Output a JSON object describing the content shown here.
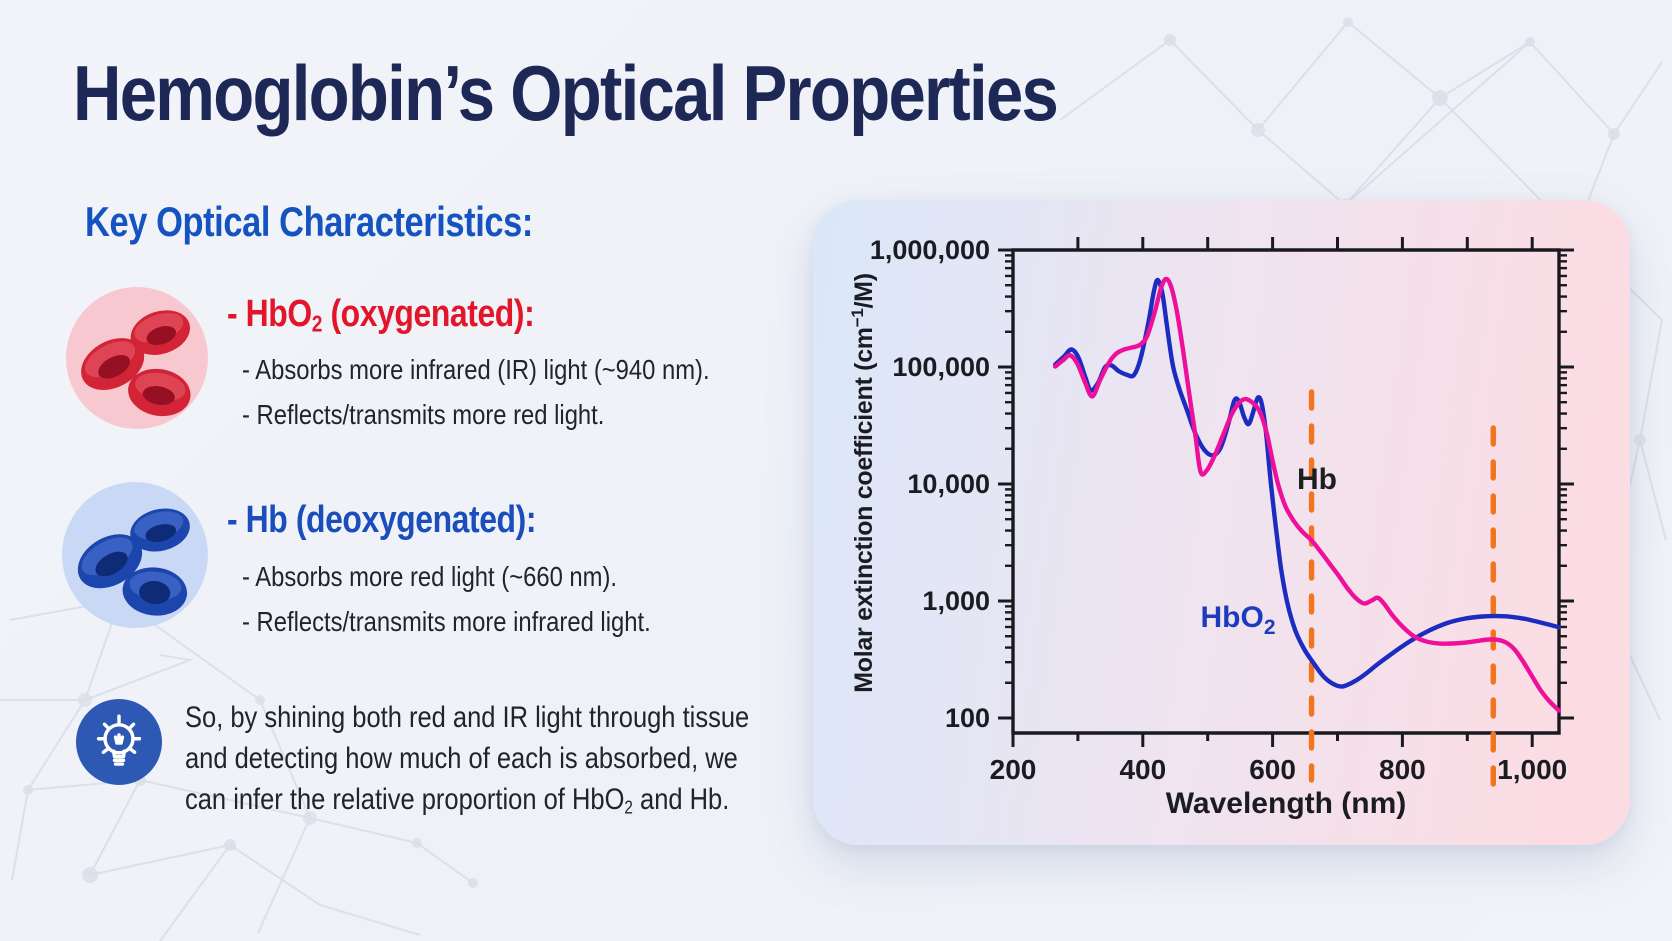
{
  "title": "Hemoglobin’s Optical Properties",
  "key_heading": "Key Optical Characteristics:",
  "sections": [
    {
      "id": "hbo2",
      "heading_pre": "- HbO",
      "heading_sub": "2",
      "heading_post": " (oxygenated):",
      "bullets": [
        "- Absorbs more infrared (IR) light (~940 nm).",
        "- Reflects/transmits more red light."
      ]
    },
    {
      "id": "hb",
      "heading_pre": "- Hb (deoxygenated):",
      "heading_sub": "",
      "heading_post": "",
      "bullets": [
        "- Absorbs more red light (~660 nm).",
        "- Reflects/transmits more infrared light."
      ]
    }
  ],
  "note": {
    "lines": [
      "So, by shining both red and IR light through tissue",
      "and detecting how much of each is absorbed, we"
    ],
    "line3_pre": "can infer the relative proportion of HbO",
    "line3_sub": "2",
    "line3_post": " and Hb."
  },
  "icons": {
    "oxygenated": "red-blood-cells-icon",
    "deoxygenated": "blue-blood-cells-icon",
    "note": "lightbulb-icon"
  },
  "colors": {
    "title": "#1d2857",
    "key_heading": "#1553c0",
    "hbo2_heading": "#e2152b",
    "hb_heading": "#1b4dbb",
    "body_text": "#232429",
    "panel_gradient": [
      "#dbe7f9",
      "#fcdce3"
    ],
    "curve_hbo2": "#1b2cc1",
    "curve_hb": "#ee109b",
    "dashed_line": "#f2751d",
    "axis": "#191a1f"
  },
  "chart_data": {
    "type": "line",
    "title": "",
    "xlabel": "Wavelength (nm)",
    "ylabel": "Molar extinction coefficient (cm⁻¹/M)",
    "ylabel_parts": {
      "pre": "Molar extinction coefficient (cm",
      "sup": "−1",
      "post": "/M)"
    },
    "x_scale": "linear",
    "y_scale": "log",
    "xlim": [
      200,
      1041
    ],
    "ylim": [
      100,
      1000000
    ],
    "grid": false,
    "legend_position": "inline-labels",
    "x_major_ticks": [
      {
        "value": 200,
        "label": "200"
      },
      {
        "value": 400,
        "label": "400"
      },
      {
        "value": 600,
        "label": "600"
      },
      {
        "value": 800,
        "label": "800"
      },
      {
        "value": 1000,
        "label": "1,000"
      }
    ],
    "x_minor_ticks": [
      300,
      500,
      700,
      900
    ],
    "x_top_ticks": [
      300,
      400,
      500,
      600,
      700,
      800,
      900,
      1000
    ],
    "y_major_ticks": [
      {
        "value": 1000000,
        "label": "1,000,000"
      },
      {
        "value": 100000,
        "label": "100,000"
      },
      {
        "value": 10000,
        "label": "10,000"
      },
      {
        "value": 1000,
        "label": "1,000"
      },
      {
        "value": 100,
        "label": "100"
      }
    ],
    "vlines": [
      {
        "wavelength_nm": 660,
        "color": "#f2751d",
        "style": "dashed"
      },
      {
        "wavelength_nm": 940,
        "color": "#f2751d",
        "style": "dashed"
      }
    ],
    "series": [
      {
        "name": "HbO2",
        "label": "HbO₂",
        "label_parts": {
          "pre": "HbO",
          "sub": "2"
        },
        "color": "#1b2cc1",
        "label_color": "#1d3cbd",
        "points": [
          [
            265,
            105000
          ],
          [
            278,
            122000
          ],
          [
            290,
            141000
          ],
          [
            301,
            120000
          ],
          [
            312,
            80000
          ],
          [
            320,
            63000
          ],
          [
            331,
            73000
          ],
          [
            342,
            100000
          ],
          [
            352,
            103000
          ],
          [
            363,
            92000
          ],
          [
            375,
            86000
          ],
          [
            386,
            85000
          ],
          [
            396,
            115000
          ],
          [
            408,
            230000
          ],
          [
            417,
            440000
          ],
          [
            423,
            555000
          ],
          [
            430,
            430000
          ],
          [
            437,
            230000
          ],
          [
            446,
            105000
          ],
          [
            456,
            66000
          ],
          [
            468,
            43000
          ],
          [
            481,
            27000
          ],
          [
            495,
            19500
          ],
          [
            508,
            17600
          ],
          [
            520,
            20500
          ],
          [
            532,
            33000
          ],
          [
            541,
            51500
          ],
          [
            548,
            51000
          ],
          [
            556,
            37500
          ],
          [
            563,
            32500
          ],
          [
            570,
            41000
          ],
          [
            577,
            54500
          ],
          [
            583,
            49000
          ],
          [
            590,
            27000
          ],
          [
            597,
            10500
          ],
          [
            605,
            4300
          ],
          [
            613,
            1900
          ],
          [
            623,
            950
          ],
          [
            635,
            560
          ],
          [
            649,
            385
          ],
          [
            663,
            295
          ],
          [
            678,
            228
          ],
          [
            693,
            196
          ],
          [
            707,
            186
          ],
          [
            723,
            201
          ],
          [
            741,
            233
          ],
          [
            763,
            292
          ],
          [
            789,
            372
          ],
          [
            813,
            458
          ],
          [
            841,
            558
          ],
          [
            869,
            648
          ],
          [
            897,
            708
          ],
          [
            923,
            737
          ],
          [
            946,
            743
          ],
          [
            969,
            731
          ],
          [
            991,
            700
          ],
          [
            1013,
            655
          ],
          [
            1041,
            597
          ]
        ]
      },
      {
        "name": "Hb",
        "label": "Hb",
        "label_parts": {
          "pre": "Hb",
          "sub": ""
        },
        "color": "#ee109b",
        "label_color": "#1d1e22",
        "points": [
          [
            265,
            101000
          ],
          [
            277,
            114000
          ],
          [
            288,
            126000
          ],
          [
            299,
            107000
          ],
          [
            311,
            74000
          ],
          [
            322,
            56000
          ],
          [
            334,
            77000
          ],
          [
            347,
            107000
          ],
          [
            359,
            130000
          ],
          [
            371,
            141000
          ],
          [
            384,
            147000
          ],
          [
            395,
            154000
          ],
          [
            406,
            180000
          ],
          [
            418,
            290000
          ],
          [
            428,
            472000
          ],
          [
            436,
            566000
          ],
          [
            444,
            478000
          ],
          [
            453,
            288000
          ],
          [
            462,
            140000
          ],
          [
            471,
            62000
          ],
          [
            481,
            26000
          ],
          [
            489,
            12700
          ],
          [
            499,
            13200
          ],
          [
            511,
            17600
          ],
          [
            524,
            26500
          ],
          [
            537,
            39500
          ],
          [
            549,
            49800
          ],
          [
            558,
            53200
          ],
          [
            567,
            50600
          ],
          [
            576,
            45400
          ],
          [
            584,
            36800
          ],
          [
            592,
            25800
          ],
          [
            600,
            15800
          ],
          [
            609,
            9700
          ],
          [
            620,
            6400
          ],
          [
            633,
            4800
          ],
          [
            646,
            3900
          ],
          [
            660,
            3300
          ],
          [
            674,
            2640
          ],
          [
            688,
            2080
          ],
          [
            702,
            1640
          ],
          [
            716,
            1270
          ],
          [
            729,
            1050
          ],
          [
            741,
            952
          ],
          [
            753,
            1012
          ],
          [
            762,
            1066
          ],
          [
            772,
            944
          ],
          [
            786,
            738
          ],
          [
            801,
            598
          ],
          [
            818,
            498
          ],
          [
            836,
            452
          ],
          [
            856,
            434
          ],
          [
            877,
            433
          ],
          [
            897,
            441
          ],
          [
            916,
            456
          ],
          [
            933,
            469
          ],
          [
            947,
            466
          ],
          [
            960,
            441
          ],
          [
            973,
            384
          ],
          [
            986,
            304
          ],
          [
            999,
            231
          ],
          [
            1012,
            176
          ],
          [
            1026,
            140
          ],
          [
            1041,
            116
          ]
        ]
      }
    ]
  }
}
